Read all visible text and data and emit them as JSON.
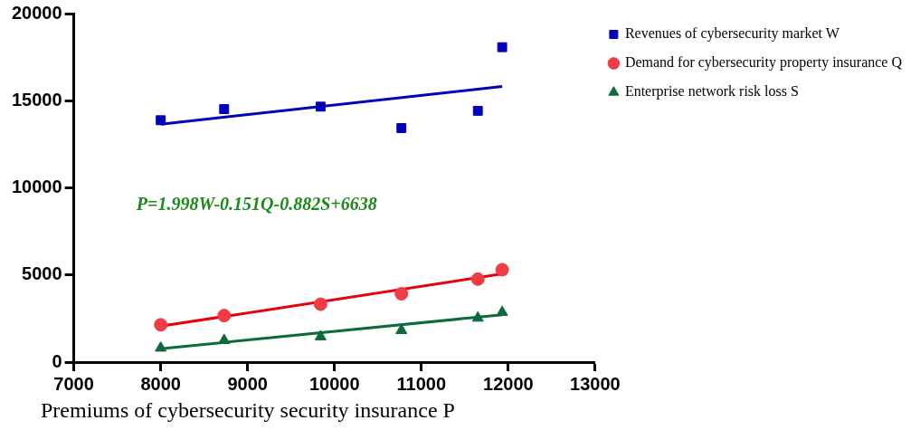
{
  "chart_data": {
    "type": "scatter",
    "xlabel": "Premiums of cybersecurity security insurance P",
    "xlim": [
      7000,
      13000
    ],
    "xticks": [
      7000,
      8000,
      9000,
      10000,
      11000,
      12000,
      13000
    ],
    "ylim": [
      0,
      20000
    ],
    "yticks": [
      0,
      5000,
      10000,
      15000,
      20000
    ],
    "grid": false,
    "legend": "right",
    "annotations": [
      "P=1.998W-0.151Q-0.882S+6638"
    ],
    "series": [
      {
        "name": "Revenues of cybersecurity market W",
        "marker": "square",
        "color": "#0000bb",
        "x": [
          8000,
          8730,
          9840,
          10770,
          11650,
          11930
        ],
        "values": [
          13880,
          14520,
          14660,
          13430,
          14420,
          18070
        ]
      },
      {
        "name": "Demand for cybersecurity property insurance Q",
        "marker": "circle",
        "color": "#f03c46",
        "x": [
          8000,
          8730,
          9840,
          10770,
          11650,
          11930
        ],
        "values": [
          2140,
          2670,
          3320,
          3920,
          4760,
          5300
        ]
      },
      {
        "name": "Enterprise network risk loss S",
        "marker": "triangle",
        "color": "#0c6b3c",
        "x": [
          8000,
          8730,
          9840,
          10770,
          11650,
          11930
        ],
        "values": [
          810,
          1250,
          1460,
          1820,
          2530,
          2860
        ]
      },
      {
        "type": "line",
        "marker": "none",
        "color": "#0000bb",
        "x": [
          8000,
          11930
        ],
        "values": [
          13650,
          15820
        ]
      },
      {
        "type": "line",
        "marker": "none",
        "color": "#e8000b",
        "x": [
          8000,
          11930
        ],
        "values": [
          2060,
          5060
        ]
      },
      {
        "type": "line",
        "marker": "none",
        "color": "#0c6b3c",
        "x": [
          8000,
          11930
        ],
        "values": [
          770,
          2720
        ]
      }
    ]
  }
}
